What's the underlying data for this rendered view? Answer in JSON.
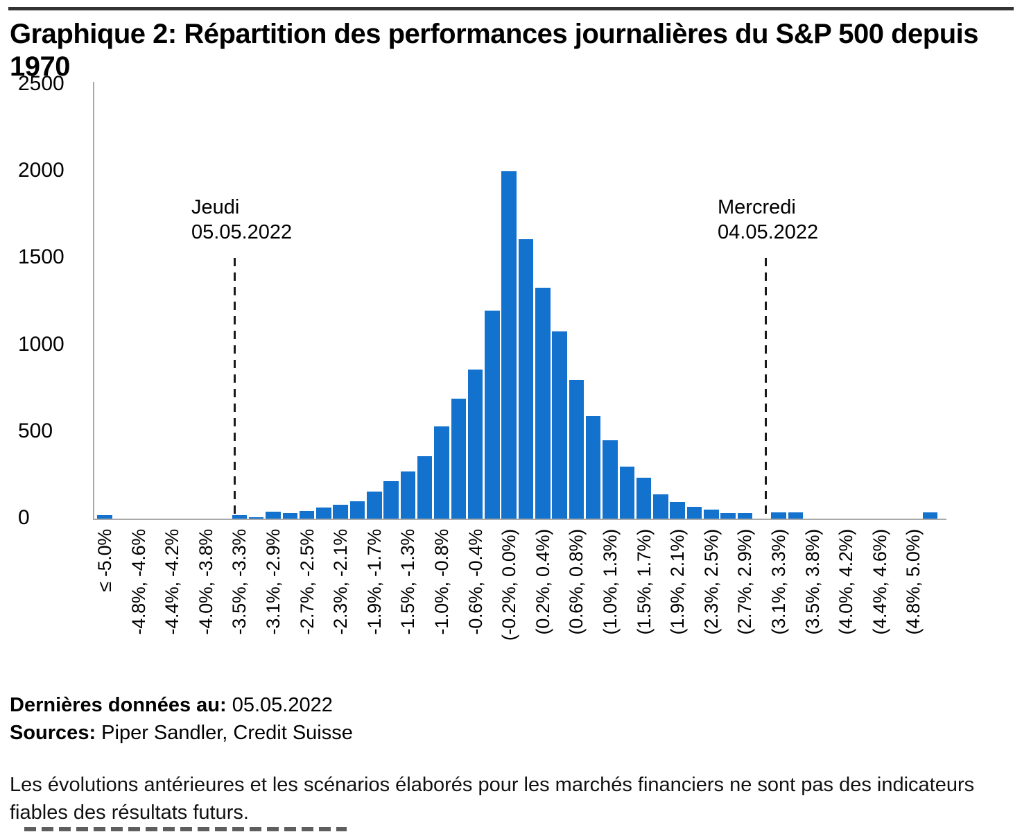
{
  "header": {
    "title_line1": "Graphique 2: Répartition des performances journalières du S&P 500 depuis",
    "title_line2": "1970"
  },
  "chart_data": {
    "type": "bar",
    "title": "Graphique 2: Répartition des performances journalières du S&P 500 depuis 1970",
    "xlabel": "",
    "ylabel": "",
    "ylim": [
      0,
      2500
    ],
    "grid": false,
    "legend": "none",
    "bar_color": "#1272ce",
    "axis_color": "#a9a9a9",
    "y_ticks": [
      "0",
      "500",
      "1000",
      "1500",
      "2000",
      "2500"
    ],
    "bin_note": "50 bins from <=-5.0% to >5.0%; every other bin carries a tick label",
    "values": [
      20,
      0,
      0,
      0,
      0,
      0,
      0,
      0,
      20,
      8,
      40,
      31,
      42,
      62,
      78,
      100,
      155,
      215,
      270,
      360,
      530,
      690,
      860,
      1200,
      2000,
      1610,
      1330,
      1080,
      800,
      590,
      450,
      300,
      235,
      140,
      95,
      68,
      50,
      33,
      33,
      0,
      34,
      34,
      0,
      0,
      0,
      0,
      0,
      0,
      0,
      34
    ],
    "x_tick_labels": [
      "≤ -5.0%",
      "-4.8%, -4.6%",
      "-4.4%, -4.2%",
      "-4.0%, -3.8%",
      "-3.5%, -3.3%",
      "-3.1%, -2.9%",
      "-2.7%, -2.5%",
      "-2.3%, -2.1%",
      "-1.9%, -1.7%",
      "-1.5%, -1.3%",
      "-1.0%, -0.8%",
      "-0.6%, -0.4%",
      "(-0.2%, 0.0%)",
      "(0.2%, 0.4%)",
      "(0.6%, 0.8%)",
      "(1.0%, 1.3%)",
      "(1.5%, 1.7%)",
      "(1.9%, 2.1%)",
      "(2.3%, 2.5%)",
      "(2.7%, 2.9%)",
      "(3.1%, 3.3%)",
      "(3.5%, 3.8%)",
      "(4.0%, 4.2%)",
      "(4.4%, 4.6%)",
      "(4.8%, 5.0%)"
    ],
    "annotations": [
      {
        "id": "jeudi",
        "line1": "Jeudi",
        "line2": "05.05.2022"
      },
      {
        "id": "mercredi",
        "line1": "Mercredi",
        "line2": "04.05.2022"
      }
    ]
  },
  "footer": {
    "last_data_label": "Dernières données au:",
    "last_data_value": "05.05.2022",
    "sources_label": "Sources:",
    "sources_value": "Piper Sandler, Credit Suisse",
    "disclaimer_line1": "Les évolutions antérieures et les scénarios élaborés pour les marchés financiers ne sont pas des indicateurs",
    "disclaimer_line2": "fiables des résultats futurs."
  }
}
